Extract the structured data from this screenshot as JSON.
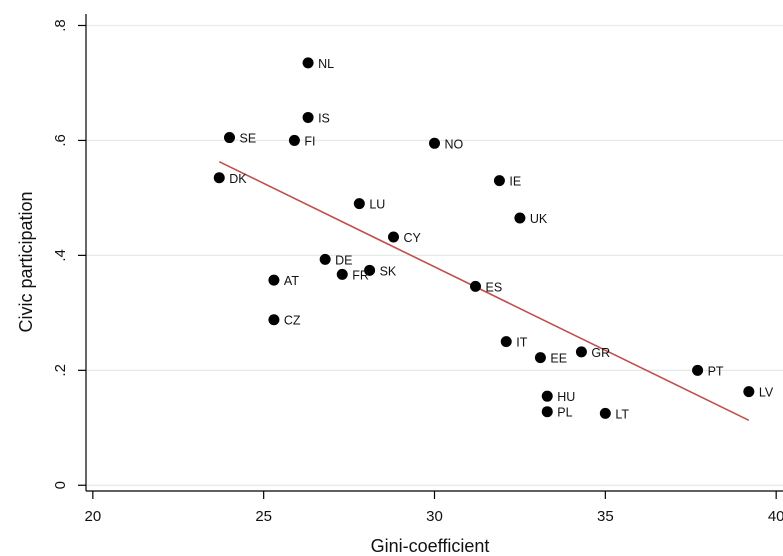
{
  "chart_data": {
    "type": "scatter",
    "title": "",
    "xlabel": "Gini-coefficient",
    "ylabel": "Civic participation",
    "xlim": [
      19.8,
      40.2
    ],
    "ylim": [
      -0.01,
      0.82
    ],
    "xticks": [
      20,
      25,
      30,
      35,
      40
    ],
    "xtick_labels": [
      "20",
      "25",
      "30",
      "35",
      "40"
    ],
    "yticks": [
      0,
      0.2,
      0.4,
      0.6,
      0.8
    ],
    "ytick_labels": [
      "0",
      ".2",
      ".4",
      ".6",
      ".8"
    ],
    "grid": "horizontal",
    "colors": {
      "points": "#000000",
      "fit_line": "#c0504d",
      "grid": "#e3ece9",
      "axis": "#000000"
    },
    "points": [
      {
        "label": "NL",
        "x": 26.3,
        "y": 0.735
      },
      {
        "label": "IS",
        "x": 26.3,
        "y": 0.64
      },
      {
        "label": "SE",
        "x": 24.0,
        "y": 0.605
      },
      {
        "label": "FI",
        "x": 25.9,
        "y": 0.6
      },
      {
        "label": "NO",
        "x": 30.0,
        "y": 0.595
      },
      {
        "label": "DK",
        "x": 23.7,
        "y": 0.535
      },
      {
        "label": "IE",
        "x": 31.9,
        "y": 0.53
      },
      {
        "label": "LU",
        "x": 27.8,
        "y": 0.49
      },
      {
        "label": "UK",
        "x": 32.5,
        "y": 0.465
      },
      {
        "label": "CY",
        "x": 28.8,
        "y": 0.432
      },
      {
        "label": "DE",
        "x": 26.8,
        "y": 0.393
      },
      {
        "label": "SK",
        "x": 28.1,
        "y": 0.374
      },
      {
        "label": "FR",
        "x": 27.3,
        "y": 0.367
      },
      {
        "label": "AT",
        "x": 25.3,
        "y": 0.357
      },
      {
        "label": "ES",
        "x": 31.2,
        "y": 0.346
      },
      {
        "label": "CZ",
        "x": 25.3,
        "y": 0.288
      },
      {
        "label": "IT",
        "x": 32.1,
        "y": 0.25
      },
      {
        "label": "GR",
        "x": 34.3,
        "y": 0.232
      },
      {
        "label": "EE",
        "x": 33.1,
        "y": 0.222
      },
      {
        "label": "PT",
        "x": 37.7,
        "y": 0.2
      },
      {
        "label": "LV",
        "x": 39.2,
        "y": 0.163
      },
      {
        "label": "HU",
        "x": 33.3,
        "y": 0.155
      },
      {
        "label": "PL",
        "x": 33.3,
        "y": 0.128
      },
      {
        "label": "LT",
        "x": 35.0,
        "y": 0.125
      }
    ],
    "fit_line": {
      "x": [
        23.7,
        39.2
      ],
      "y": [
        0.563,
        0.113
      ]
    }
  }
}
